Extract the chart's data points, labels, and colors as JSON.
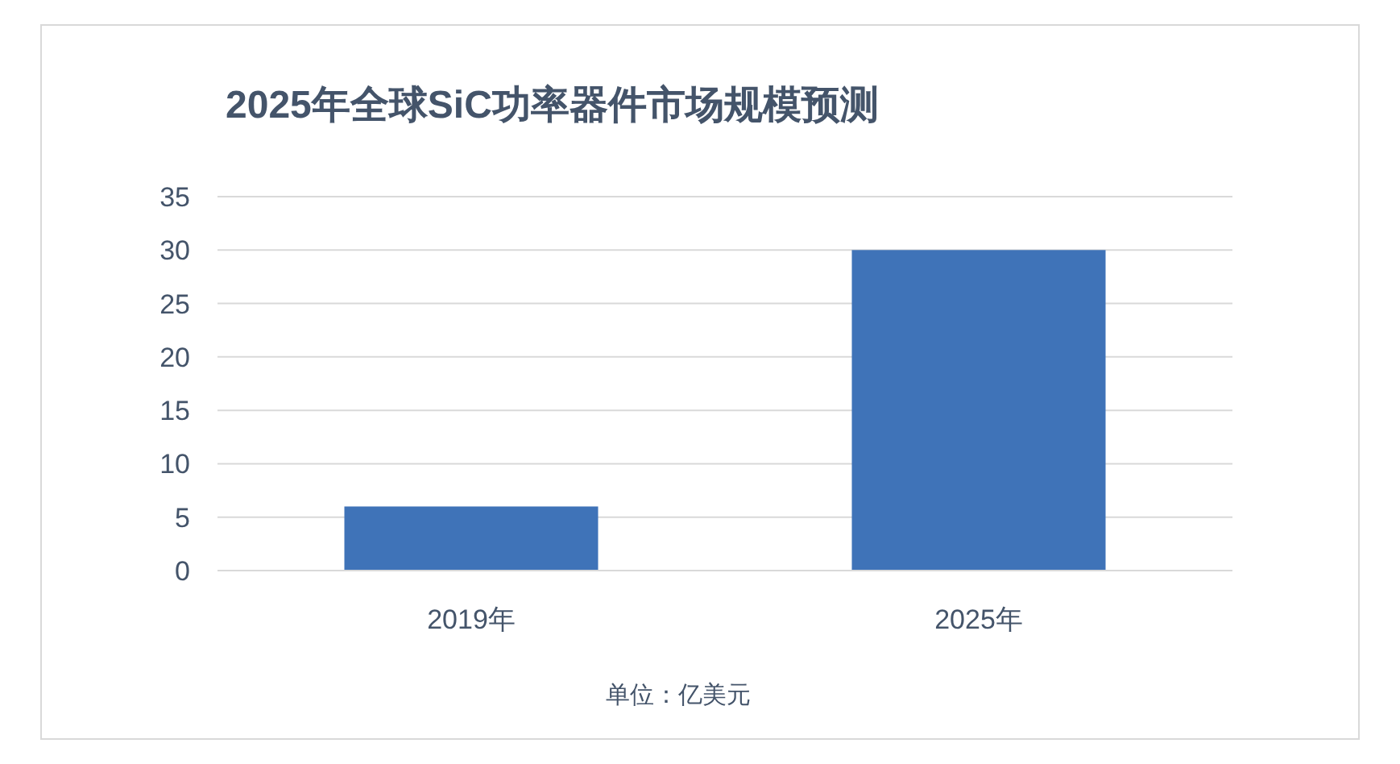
{
  "chart_data": {
    "type": "bar",
    "title": "2025年全球SiC功率器件市场规模预测",
    "categories": [
      "2019年",
      "2025年"
    ],
    "values": [
      6,
      30
    ],
    "color": "#3f73b8",
    "ylim": [
      0,
      35
    ],
    "yticks": [
      0,
      5,
      10,
      15,
      20,
      25,
      30,
      35
    ],
    "grid": "y",
    "annotations": [
      "单位：亿美元"
    ]
  }
}
